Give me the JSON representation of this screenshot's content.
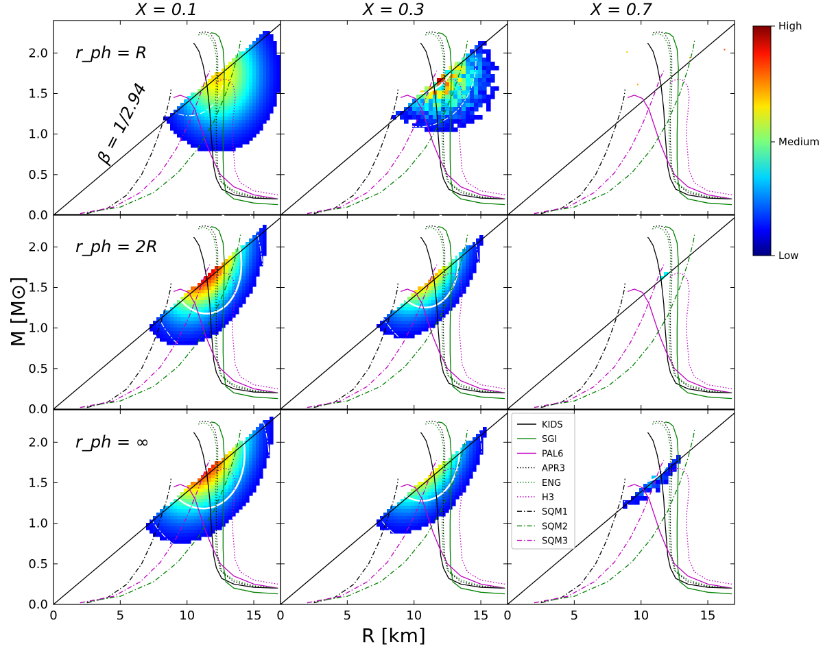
{
  "chart_data": {
    "type": "scatter",
    "description_grid": "3x3 panels of mass-radius probability density with EOS curves",
    "column_titles": [
      "X = 0.1",
      "X = 0.3",
      "X = 0.7"
    ],
    "row_labels": [
      "r_ph = R",
      "r_ph = 2R",
      "r_ph = ∞"
    ],
    "xlabel": "R [km]",
    "ylabel": "M [M⊙]",
    "xlim": [
      0,
      17
    ],
    "ylim": [
      0,
      2.4
    ],
    "xticks": [
      0,
      5,
      10,
      15
    ],
    "yticks": [
      0.0,
      0.5,
      1.0,
      1.5,
      2.0
    ],
    "annotation": "β = 1/2.94",
    "colorbar": {
      "labels": [
        "High",
        "Medium",
        "Low"
      ]
    },
    "legend": [
      "KIDS",
      "SGI",
      "PAL6",
      "APR3",
      "ENG",
      "H3",
      "SQM1",
      "SQM2",
      "SQM3"
    ],
    "causality_line": {
      "slope_M_per_R": 0.1388
    },
    "series": [
      {
        "name": "KIDS",
        "color": "#000000",
        "style": "solid",
        "x": [
          16.8,
          15.0,
          13.5,
          12.6,
          12.2,
          12.0,
          11.9,
          11.8,
          11.7,
          11.5,
          11.2,
          10.9,
          10.6,
          10.5
        ],
        "y": [
          0.2,
          0.21,
          0.25,
          0.32,
          0.45,
          0.6,
          0.8,
          1.0,
          1.3,
          1.6,
          1.85,
          2.02,
          2.1,
          2.12
        ]
      },
      {
        "name": "SGI",
        "color": "#008000",
        "style": "solid",
        "x": [
          16.8,
          15.0,
          13.5,
          12.9,
          12.75,
          12.7,
          12.7,
          12.75,
          12.8,
          12.7,
          12.4,
          12.1,
          11.8
        ],
        "y": [
          0.13,
          0.15,
          0.2,
          0.28,
          0.45,
          0.7,
          1.0,
          1.4,
          1.8,
          2.05,
          2.2,
          2.24,
          2.25
        ]
      },
      {
        "name": "PAL6",
        "color": "#c000c0",
        "style": "solid",
        "x": [
          16.8,
          15.0,
          13.5,
          12.5,
          11.9,
          11.4,
          11.0,
          10.6,
          10.1,
          9.5,
          9.0
        ],
        "y": [
          0.2,
          0.25,
          0.35,
          0.5,
          0.7,
          0.9,
          1.1,
          1.3,
          1.44,
          1.48,
          1.45
        ]
      },
      {
        "name": "APR3",
        "color": "#000000",
        "style": "dotted",
        "x": [
          16.8,
          15.0,
          13.5,
          12.6,
          12.3,
          12.2,
          12.2,
          12.3,
          12.3,
          12.1,
          11.7,
          11.3,
          10.9
        ],
        "y": [
          0.2,
          0.22,
          0.28,
          0.4,
          0.6,
          0.9,
          1.2,
          1.6,
          1.95,
          2.15,
          2.25,
          2.26,
          2.25
        ]
      },
      {
        "name": "ENG",
        "color": "#008000",
        "style": "dotted",
        "x": [
          16.8,
          15.0,
          13.5,
          12.5,
          12.2,
          12.1,
          12.1,
          12.2,
          12.2,
          12.0,
          11.6,
          11.2,
          10.8
        ],
        "y": [
          0.2,
          0.23,
          0.3,
          0.42,
          0.62,
          0.92,
          1.25,
          1.65,
          1.95,
          2.12,
          2.22,
          2.24,
          2.22
        ]
      },
      {
        "name": "H3",
        "color": "#c000c0",
        "style": "dotted",
        "x": [
          16.8,
          15.0,
          14.0,
          13.6,
          13.5,
          13.4,
          13.4,
          13.5,
          13.6,
          13.5,
          13.2,
          12.8,
          12.4,
          12.1
        ],
        "y": [
          0.25,
          0.3,
          0.4,
          0.55,
          0.75,
          0.95,
          1.1,
          1.25,
          1.45,
          1.58,
          1.66,
          1.68,
          1.66,
          1.62
        ]
      },
      {
        "name": "SQM1",
        "color": "#000000",
        "style": "dashdot",
        "x": [
          2.5,
          4.0,
          5.5,
          6.6,
          7.4,
          8.0,
          8.5,
          8.75,
          8.8
        ],
        "y": [
          0.02,
          0.08,
          0.25,
          0.5,
          0.78,
          1.05,
          1.3,
          1.48,
          1.55
        ]
      },
      {
        "name": "SQM2",
        "color": "#008000",
        "style": "dashdot",
        "x": [
          2.0,
          5.0,
          7.5,
          9.3,
          10.8,
          12.0,
          12.9,
          13.5,
          13.9,
          14.0
        ],
        "y": [
          0.02,
          0.1,
          0.28,
          0.52,
          0.82,
          1.15,
          1.5,
          1.8,
          2.05,
          2.15
        ]
      },
      {
        "name": "SQM3",
        "color": "#c000c0",
        "style": "dashdot",
        "x": [
          2.0,
          4.5,
          6.5,
          8.0,
          9.2,
          10.1,
          10.9,
          11.4,
          11.7
        ],
        "y": [
          0.02,
          0.1,
          0.28,
          0.52,
          0.82,
          1.12,
          1.45,
          1.68,
          1.78
        ]
      }
    ],
    "density_blobs": [
      {
        "panel": [
          0,
          0
        ],
        "peak": [
          9.5,
          2.05
        ],
        "spread": [
          1.4,
          0.3
        ],
        "tilt": 0.55,
        "extent": 1.9,
        "secondary": {
          "peak": [
            12.2,
            1.75
          ],
          "spread": [
            2.2,
            0.45
          ]
        }
      },
      {
        "panel": [
          0,
          1
        ],
        "peak": [
          10.2,
          1.98
        ],
        "spread": [
          1.9,
          0.32
        ],
        "tilt": 0.3,
        "extent": 1.3,
        "noisy": true,
        "secondary": {
          "peak": [
            11.8,
            1.7
          ],
          "spread": [
            2.0,
            0.3
          ]
        }
      },
      {
        "panel": [
          0,
          2
        ],
        "peak": [
          10.5,
          2.2
        ],
        "spread": [
          0.4,
          0.05
        ],
        "tilt": 0.0,
        "extent": 0.0,
        "sparse": true
      },
      {
        "panel": [
          1,
          0
        ],
        "peak": [
          11.2,
          1.85
        ],
        "spread": [
          1.9,
          0.45
        ],
        "tilt": 0.25,
        "extent": 2.0
      },
      {
        "panel": [
          1,
          1
        ],
        "peak": [
          10.6,
          1.88
        ],
        "spread": [
          1.8,
          0.42
        ],
        "tilt": 0.25,
        "extent": 1.7
      },
      {
        "panel": [
          1,
          2
        ],
        "peak": [
          10.8,
          2.0
        ],
        "spread": [
          1.2,
          0.3
        ],
        "tilt": 0.2,
        "extent": 0.8,
        "noisy": true,
        "sparse": true
      },
      {
        "panel": [
          2,
          0
        ],
        "peak": [
          11.0,
          1.9
        ],
        "spread": [
          2.2,
          0.48
        ],
        "tilt": 0.22,
        "extent": 2.2
      },
      {
        "panel": [
          2,
          1
        ],
        "peak": [
          10.4,
          1.95
        ],
        "spread": [
          2.0,
          0.45
        ],
        "tilt": 0.22,
        "extent": 2.0
      },
      {
        "panel": [
          2,
          2
        ],
        "peak": [
          10.2,
          2.0
        ],
        "spread": [
          1.3,
          0.32
        ],
        "tilt": 0.25,
        "extent": 1.2,
        "noisy": true
      }
    ]
  }
}
